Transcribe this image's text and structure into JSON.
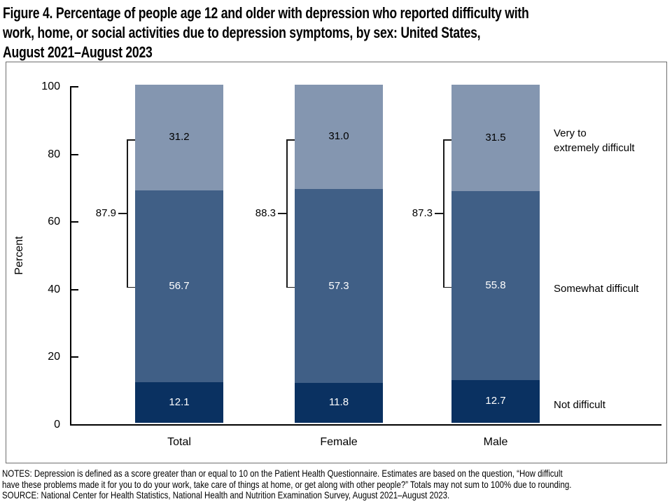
{
  "figure": {
    "title_lines": [
      "Figure 4. Percentage of people age 12 and older with depression who reported difficulty with",
      "work, home, or social activities due to depression symptoms, by sex: United States,",
      "August 2021–August 2023"
    ]
  },
  "y_axis": {
    "label": "Percent",
    "ticks": [
      100,
      80,
      60,
      40,
      20,
      0
    ],
    "ymin": 0,
    "ymax": 100
  },
  "legend": {
    "very": "Very to\nextremely difficult",
    "somewhat": "Somewhat difficult",
    "not": "Not difficult"
  },
  "chart_data": {
    "type": "bar",
    "stacked": true,
    "title": "Percentage of people age 12 and older with depression who reported difficulty with work, home, or social activities due to depression symptoms, by sex: United States, August 2021–August 2023",
    "categories": [
      "Total",
      "Female",
      "Male"
    ],
    "series": [
      {
        "name": "Not difficult",
        "color": "#0A3161",
        "label_color": "#ffffff",
        "values": [
          12.1,
          11.8,
          12.7
        ]
      },
      {
        "name": "Somewhat difficult",
        "color": "#405F86",
        "label_color": "#ffffff",
        "values": [
          56.7,
          57.3,
          55.8
        ]
      },
      {
        "name": "Very to extremely difficult",
        "color": "#8496B0",
        "label_color": "#000000",
        "values": [
          31.2,
          31.0,
          31.5
        ]
      }
    ],
    "bracket_totals": [
      87.9,
      88.3,
      87.3
    ],
    "xlabel": "",
    "ylabel": "Percent",
    "ylim": [
      0,
      100
    ],
    "grid": false,
    "legend_position": "right"
  },
  "notes": {
    "lines": [
      "NOTES: Depression is defined as a score greater than or equal to 10 on the Patient Health Questionnaire. Estimates are based on the question, “How difficult",
      "have these problems made it for you to do your work, take care of things at home, or get along with other people?” Totals may not sum to 100% due to rounding.",
      "SOURCE: National Center for Health Statistics, National Health and Nutrition Examination Survey, August 2021–August 2023."
    ]
  }
}
